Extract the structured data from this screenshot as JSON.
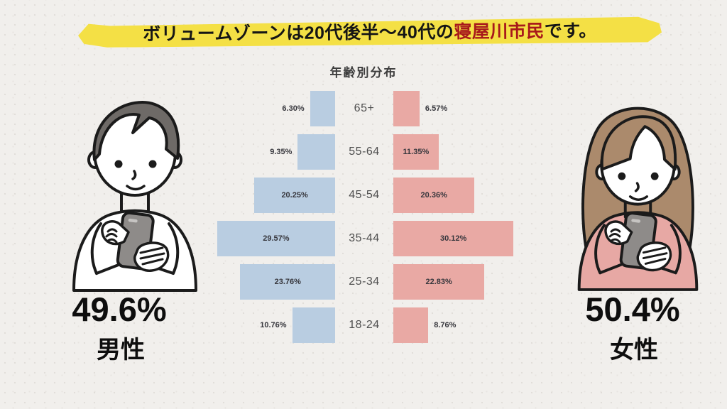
{
  "banner": {
    "text_before": "ボリュームゾーンは20代後半〜40代の",
    "highlight": "寝屋川市民",
    "text_after": "です。",
    "bg_color": "#f4e045",
    "highlight_color": "#a8191b"
  },
  "chart_data": {
    "type": "bar",
    "variant": "population_pyramid",
    "title": "年齢別分布",
    "categories": [
      "65+",
      "55-64",
      "45-54",
      "35-44",
      "25-34",
      "18-24"
    ],
    "series": [
      {
        "name": "男性",
        "side": "left",
        "color": "#b9cde1",
        "values": [
          6.3,
          9.35,
          20.25,
          29.57,
          23.76,
          10.76
        ]
      },
      {
        "name": "女性",
        "side": "right",
        "color": "#e9a9a4",
        "values": [
          6.57,
          11.35,
          20.36,
          30.12,
          22.83,
          8.76
        ]
      }
    ],
    "value_suffix": "%",
    "value_decimals": 2,
    "legend": "none",
    "axes": "none",
    "orientation": "horizontal-mirrored"
  },
  "male": {
    "percent": "49.6%",
    "label": "男性"
  },
  "female": {
    "percent": "50.4%",
    "label": "女性"
  },
  "colors": {
    "background": "#f1efec",
    "male_bar": "#b9cde1",
    "female_bar": "#e9a9a4",
    "banner_yellow": "#f4e045",
    "highlight_red": "#a8191b",
    "outline_black": "#1b1b1b",
    "man_hair": "#6e6a67",
    "woman_hair": "#ab8a6c",
    "woman_sweater": "#e7a8a4",
    "phone_gray": "#8e8b89"
  }
}
